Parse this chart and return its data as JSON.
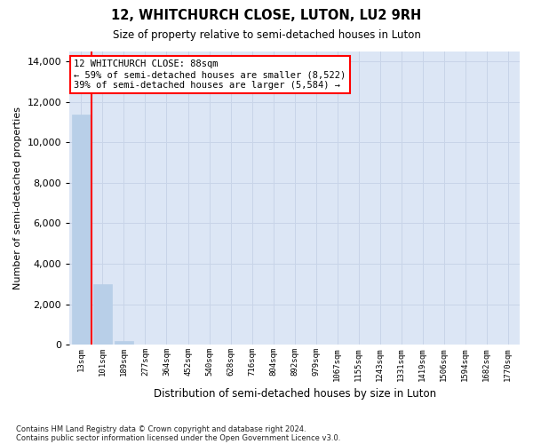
{
  "title": "12, WHITCHURCH CLOSE, LUTON, LU2 9RH",
  "subtitle": "Size of property relative to semi-detached houses in Luton",
  "xlabel": "Distribution of semi-detached houses by size in Luton",
  "ylabel": "Number of semi-detached properties",
  "categories": [
    "13sqm",
    "101sqm",
    "189sqm",
    "277sqm",
    "364sqm",
    "452sqm",
    "540sqm",
    "628sqm",
    "716sqm",
    "804sqm",
    "892sqm",
    "979sqm",
    "1067sqm",
    "1155sqm",
    "1243sqm",
    "1331sqm",
    "1419sqm",
    "1506sqm",
    "1594sqm",
    "1682sqm",
    "1770sqm"
  ],
  "values": [
    11350,
    3000,
    185,
    0,
    0,
    0,
    0,
    0,
    0,
    0,
    0,
    0,
    0,
    0,
    0,
    0,
    0,
    0,
    0,
    0,
    0
  ],
  "bar_color": "#b8cfe8",
  "bar_edgecolor": "#b8cfe8",
  "grid_color": "#c8d4e8",
  "background_color": "#dce6f5",
  "annotation_line1": "12 WHITCHURCH CLOSE: 88sqm",
  "annotation_line2": "← 59% of semi-detached houses are smaller (8,522)",
  "annotation_line3": "39% of semi-detached houses are larger (5,584) →",
  "annotation_box_facecolor": "white",
  "annotation_box_edgecolor": "red",
  "property_line_color": "red",
  "property_line_x": 0.5,
  "ylim_max": 14500,
  "yticks": [
    0,
    2000,
    4000,
    6000,
    8000,
    10000,
    12000,
    14000
  ],
  "footnote1": "Contains HM Land Registry data © Crown copyright and database right 2024.",
  "footnote2": "Contains public sector information licensed under the Open Government Licence v3.0."
}
